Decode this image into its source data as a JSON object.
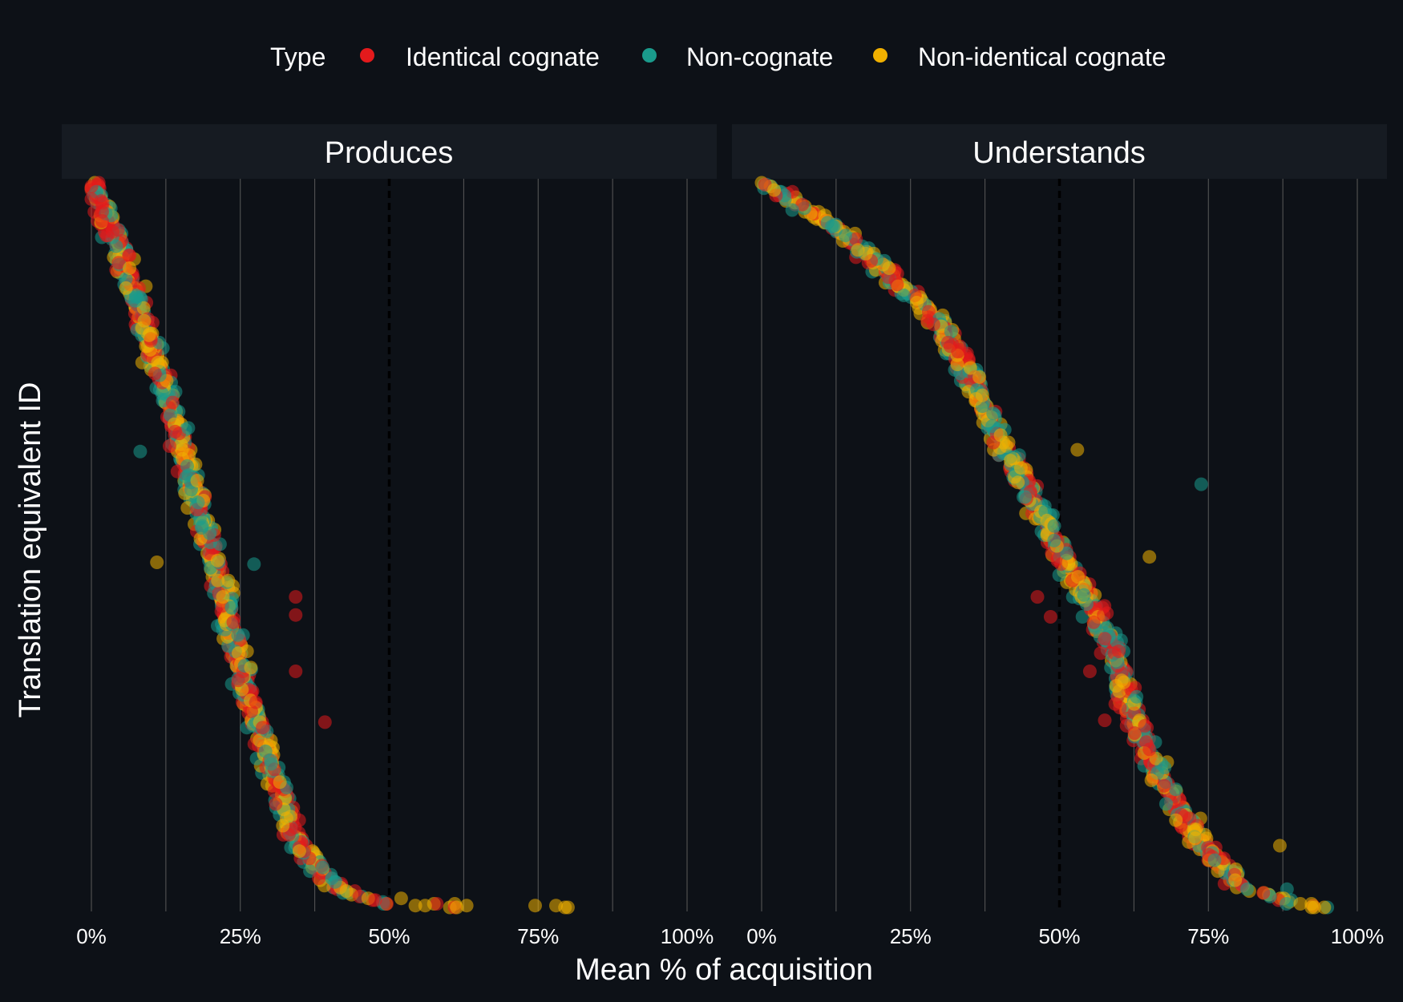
{
  "chart_data": {
    "type": "scatter",
    "title": "",
    "xlabel": "Mean % of acquisition",
    "ylabel": "Translation equivalent ID",
    "xlim": [
      0,
      1
    ],
    "x_ticks": [
      "0%",
      "25%",
      "50%",
      "75%",
      "100%"
    ],
    "x_minor_ticks": [
      0.125,
      0.375,
      0.625,
      0.875
    ],
    "reference_line_x": 0.5,
    "y_axis": "Translation equivalent ID (ranked 1-400, no tick labels; ID 1 at top)",
    "grid": "vertical only",
    "legend": {
      "title": "Type",
      "position": "top",
      "items": [
        {
          "label": "Identical cognate",
          "color": "#e31a1c"
        },
        {
          "label": "Non-cognate",
          "color": "#1a9b8c"
        },
        {
          "label": "Non-identical cognate",
          "color": "#f0b000"
        }
      ]
    },
    "colors": {
      "background": "#0d1117",
      "strip": "#161b22",
      "Identical cognate": "#e31a1c",
      "Non-cognate": "#1a9b8c",
      "Non-identical cognate": "#f0b000"
    },
    "point_opacity": 0.55,
    "facets": [
      {
        "name": "Produces",
        "trend": [
          [
            1,
            0.0
          ],
          [
            40,
            0.05
          ],
          [
            80,
            0.09
          ],
          [
            120,
            0.13
          ],
          [
            160,
            0.16
          ],
          [
            200,
            0.2
          ],
          [
            240,
            0.23
          ],
          [
            280,
            0.26
          ],
          [
            320,
            0.3
          ],
          [
            360,
            0.34
          ],
          [
            380,
            0.38
          ],
          [
            392,
            0.43
          ],
          [
            398,
            0.5
          ],
          [
            400,
            0.6
          ]
        ],
        "spread": 0.018,
        "outliers": [
          {
            "id": 229,
            "x": 0.343,
            "type": "Identical cognate"
          },
          {
            "id": 239,
            "x": 0.343,
            "type": "Identical cognate"
          },
          {
            "id": 270,
            "x": 0.343,
            "type": "Identical cognate"
          },
          {
            "id": 298,
            "x": 0.392,
            "type": "Identical cognate"
          },
          {
            "id": 211,
            "x": 0.273,
            "type": "Non-cognate"
          },
          {
            "id": 149,
            "x": 0.082,
            "type": "Non-cognate"
          },
          {
            "id": 210,
            "x": 0.11,
            "type": "Non-identical cognate"
          },
          {
            "id": 395,
            "x": 0.52,
            "type": "Non-identical cognate"
          },
          {
            "id": 398,
            "x": 0.575,
            "type": "Non-identical cognate"
          },
          {
            "id": 398,
            "x": 0.58,
            "type": "Identical cognate"
          },
          {
            "id": 398,
            "x": 0.61,
            "type": "Non-identical cognate"
          },
          {
            "id": 399,
            "x": 0.63,
            "type": "Non-identical cognate"
          },
          {
            "id": 399,
            "x": 0.745,
            "type": "Non-identical cognate"
          },
          {
            "id": 399,
            "x": 0.78,
            "type": "Non-identical cognate"
          },
          {
            "id": 400,
            "x": 0.795,
            "type": "Non-identical cognate"
          },
          {
            "id": 400,
            "x": 0.8,
            "type": "Non-identical cognate"
          }
        ]
      },
      {
        "name": "Understands",
        "trend": [
          [
            1,
            0.0
          ],
          [
            10,
            0.05
          ],
          [
            25,
            0.12
          ],
          [
            50,
            0.21
          ],
          [
            75,
            0.29
          ],
          [
            100,
            0.34
          ],
          [
            130,
            0.38
          ],
          [
            160,
            0.43
          ],
          [
            190,
            0.48
          ],
          [
            220,
            0.53
          ],
          [
            250,
            0.58
          ],
          [
            280,
            0.61
          ],
          [
            310,
            0.64
          ],
          [
            340,
            0.69
          ],
          [
            370,
            0.75
          ],
          [
            390,
            0.81
          ],
          [
            400,
            0.93
          ]
        ],
        "spread": 0.02,
        "outliers": [
          {
            "id": 229,
            "x": 0.463,
            "type": "Identical cognate"
          },
          {
            "id": 240,
            "x": 0.485,
            "type": "Identical cognate"
          },
          {
            "id": 270,
            "x": 0.551,
            "type": "Identical cognate"
          },
          {
            "id": 297,
            "x": 0.576,
            "type": "Identical cognate"
          },
          {
            "id": 167,
            "x": 0.738,
            "type": "Non-cognate"
          },
          {
            "id": 148,
            "x": 0.53,
            "type": "Non-identical cognate"
          },
          {
            "id": 207,
            "x": 0.651,
            "type": "Non-identical cognate"
          },
          {
            "id": 366,
            "x": 0.87,
            "type": "Non-identical cognate"
          },
          {
            "id": 390,
            "x": 0.882,
            "type": "Non-cognate"
          },
          {
            "id": 400,
            "x": 0.928,
            "type": "Non-identical cognate"
          }
        ]
      }
    ]
  }
}
